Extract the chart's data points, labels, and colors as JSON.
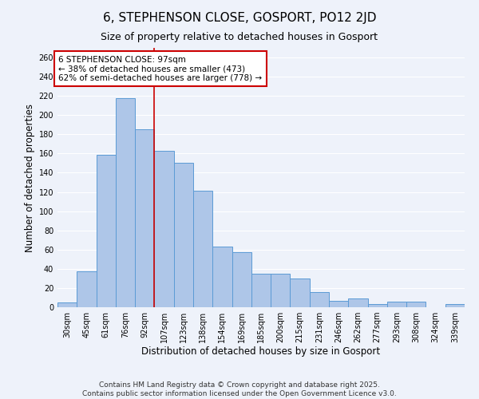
{
  "title": "6, STEPHENSON CLOSE, GOSPORT, PO12 2JD",
  "subtitle": "Size of property relative to detached houses in Gosport",
  "xlabel": "Distribution of detached houses by size in Gosport",
  "ylabel": "Number of detached properties",
  "categories": [
    "30sqm",
    "45sqm",
    "61sqm",
    "76sqm",
    "92sqm",
    "107sqm",
    "123sqm",
    "138sqm",
    "154sqm",
    "169sqm",
    "185sqm",
    "200sqm",
    "215sqm",
    "231sqm",
    "246sqm",
    "262sqm",
    "277sqm",
    "293sqm",
    "308sqm",
    "324sqm",
    "339sqm"
  ],
  "values": [
    5,
    37,
    159,
    218,
    185,
    163,
    150,
    121,
    63,
    57,
    35,
    35,
    30,
    16,
    7,
    9,
    3,
    6,
    6,
    0,
    3
  ],
  "bar_color": "#aec6e8",
  "bar_edge_color": "#5b9bd5",
  "bar_width": 1.0,
  "vline_x": 4.5,
  "vline_color": "#cc0000",
  "annotation_box_text": "6 STEPHENSON CLOSE: 97sqm\n← 38% of detached houses are smaller (473)\n62% of semi-detached houses are larger (778) →",
  "ylim": [
    0,
    270
  ],
  "yticks": [
    0,
    20,
    40,
    60,
    80,
    100,
    120,
    140,
    160,
    180,
    200,
    220,
    240,
    260
  ],
  "bg_color": "#eef2fa",
  "grid_color": "#ffffff",
  "footer_line1": "Contains HM Land Registry data © Crown copyright and database right 2025.",
  "footer_line2": "Contains public sector information licensed under the Open Government Licence v3.0.",
  "title_fontsize": 11,
  "subtitle_fontsize": 9,
  "axis_label_fontsize": 8.5,
  "tick_fontsize": 7,
  "annotation_fontsize": 7.5,
  "footer_fontsize": 6.5
}
